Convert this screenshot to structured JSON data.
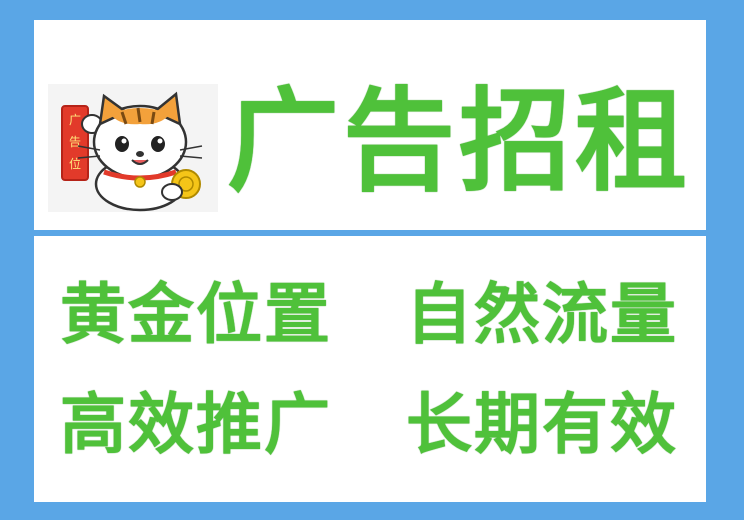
{
  "headline": "广告招租",
  "logo": {
    "banner_text": "广告位"
  },
  "tags": [
    "黄金位置",
    "自然流量",
    "高效推广",
    "长期有效"
  ],
  "colors": {
    "frame": "#5aa6e6",
    "text_green": "#4fc13a",
    "banner_red": "#e23a2a"
  }
}
